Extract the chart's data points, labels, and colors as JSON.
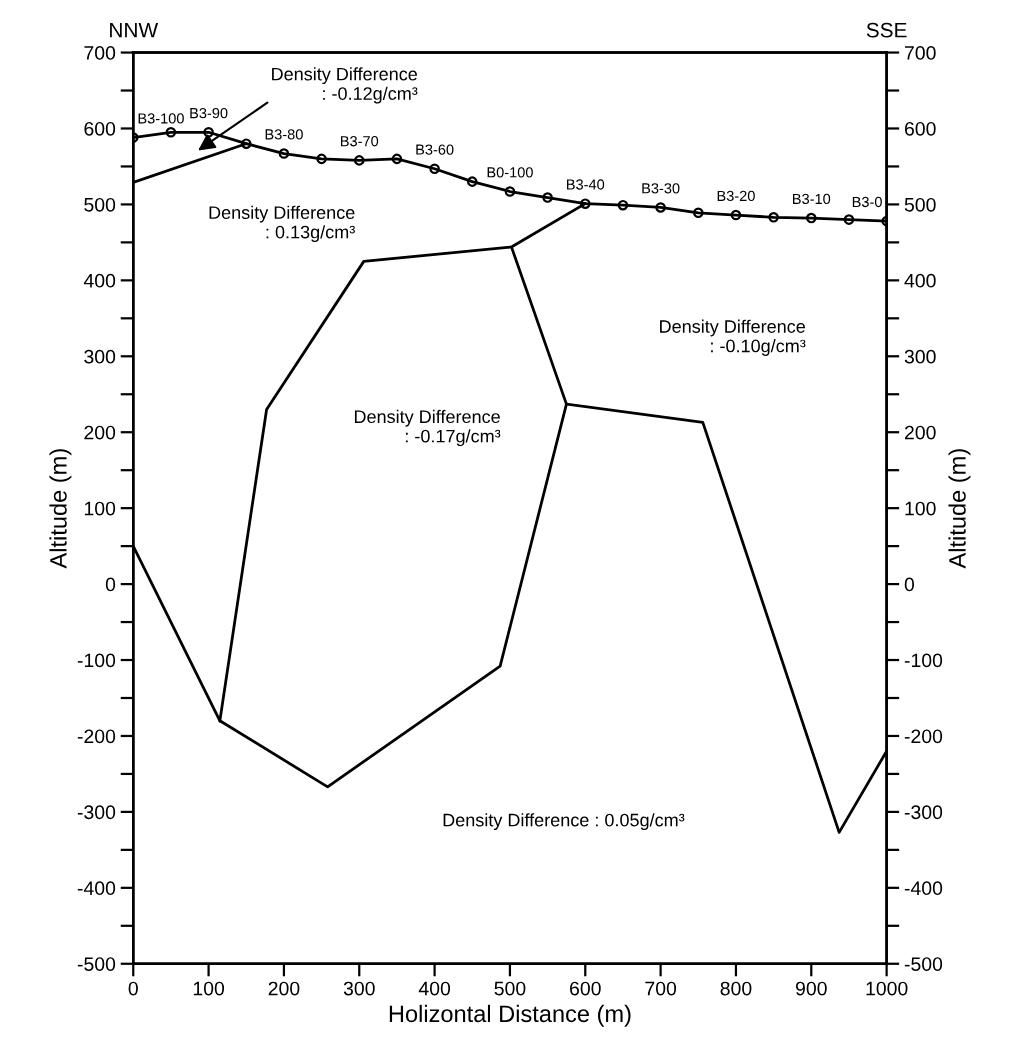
{
  "chart_data": {
    "type": "line",
    "xlabel": "Holizontal Distance (m)",
    "ylabel": "Altitude (m)",
    "y2label": "Altitude (m)",
    "xlim": [
      0,
      1000
    ],
    "xticks": [
      0,
      100,
      200,
      300,
      400,
      500,
      600,
      700,
      800,
      900,
      1000
    ],
    "ylim": [
      -500,
      700
    ],
    "yticks": [
      -500,
      {
        "value": -450,
        "label": null
      },
      -400,
      {
        "value": -350,
        "label": null
      },
      -300,
      {
        "value": -250,
        "label": null
      },
      -200,
      {
        "value": -150,
        "label": null
      },
      -100,
      {
        "value": -50,
        "label": null
      },
      0,
      {
        "value": 50,
        "label": null
      },
      100,
      {
        "value": 150,
        "label": null
      },
      200,
      {
        "value": 250,
        "label": null
      },
      300,
      {
        "value": 350,
        "label": null
      },
      400,
      {
        "value": 450,
        "label": null
      },
      500,
      {
        "value": 550,
        "label": null
      },
      600,
      {
        "value": 650,
        "label": null
      },
      700
    ],
    "y2lim": [
      -500,
      700
    ],
    "y2ticks": [
      -500,
      {
        "value": -450,
        "label": null
      },
      -400,
      {
        "value": -350,
        "label": null
      },
      -300,
      {
        "value": -250,
        "label": null
      },
      -200,
      {
        "value": -150,
        "label": null
      },
      -100,
      {
        "value": -50,
        "label": null
      },
      0,
      {
        "value": 50,
        "label": null
      },
      100,
      {
        "value": 150,
        "label": null
      },
      200,
      {
        "value": 250,
        "label": null
      },
      300,
      {
        "value": 350,
        "label": null
      },
      400,
      {
        "value": 450,
        "label": null
      },
      500,
      {
        "value": 550,
        "label": null
      },
      600,
      {
        "value": 650,
        "label": null
      },
      700
    ],
    "grid": false,
    "line_style": "solid",
    "series": [
      {
        "color": "#000000",
        "marker": "circle",
        "x": [
          0,
          50,
          100,
          150,
          200,
          250,
          300,
          350,
          400,
          450,
          500,
          550,
          600,
          650,
          700,
          750,
          800,
          850,
          900,
          950,
          1000
        ],
        "values": [
          588,
          595,
          595,
          580,
          567,
          560,
          558,
          560,
          547,
          530,
          517,
          509,
          501,
          499,
          496,
          489,
          486,
          483,
          482,
          480,
          478
        ]
      },
      {
        "color": "#000000",
        "x": [
          0,
          150
        ],
        "values": [
          529,
          580
        ]
      },
      {
        "color": "#000000",
        "x": [
          600,
          502,
          306,
          177,
          115,
          258,
          487,
          575,
          502
        ],
        "values": [
          501,
          444,
          425,
          230,
          -180,
          -267,
          -108,
          237,
          444
        ]
      },
      {
        "color": "#000000",
        "x": [
          0,
          115
        ],
        "values": [
          50,
          -180
        ]
      },
      {
        "color": "#000000",
        "x": [
          575,
          756,
          937,
          1000
        ],
        "values": [
          237,
          213,
          -327,
          -220
        ]
      }
    ],
    "annotations": [
      "NNW",
      "SSE",
      "Density Difference\n: -0.12g/cm³",
      "Density Difference\n: 0.13g/cm³",
      "Density Difference\n: -0.17g/cm³",
      "Density Difference\n: -0.10g/cm³",
      "Density Difference : 0.05g/cm³",
      {
        "text": "B3-100",
        "x": 0,
        "y": 588
      },
      {
        "text": "B3-90",
        "x": 100,
        "y": 595
      },
      {
        "text": "B3-80",
        "x": 200,
        "y": 567
      },
      {
        "text": "B3-70",
        "x": 300,
        "y": 558
      },
      {
        "text": "B3-60",
        "x": 400,
        "y": 547
      },
      {
        "text": "B0-100",
        "x": 500,
        "y": 517
      },
      {
        "text": "B3-40",
        "x": 600,
        "y": 501
      },
      {
        "text": "B3-30",
        "x": 700,
        "y": 496
      },
      {
        "text": "B3-20",
        "x": 800,
        "y": 486
      },
      {
        "text": "B3-10",
        "x": 900,
        "y": 482
      },
      {
        "text": "B3-0",
        "x": 1000,
        "y": 478
      }
    ]
  }
}
